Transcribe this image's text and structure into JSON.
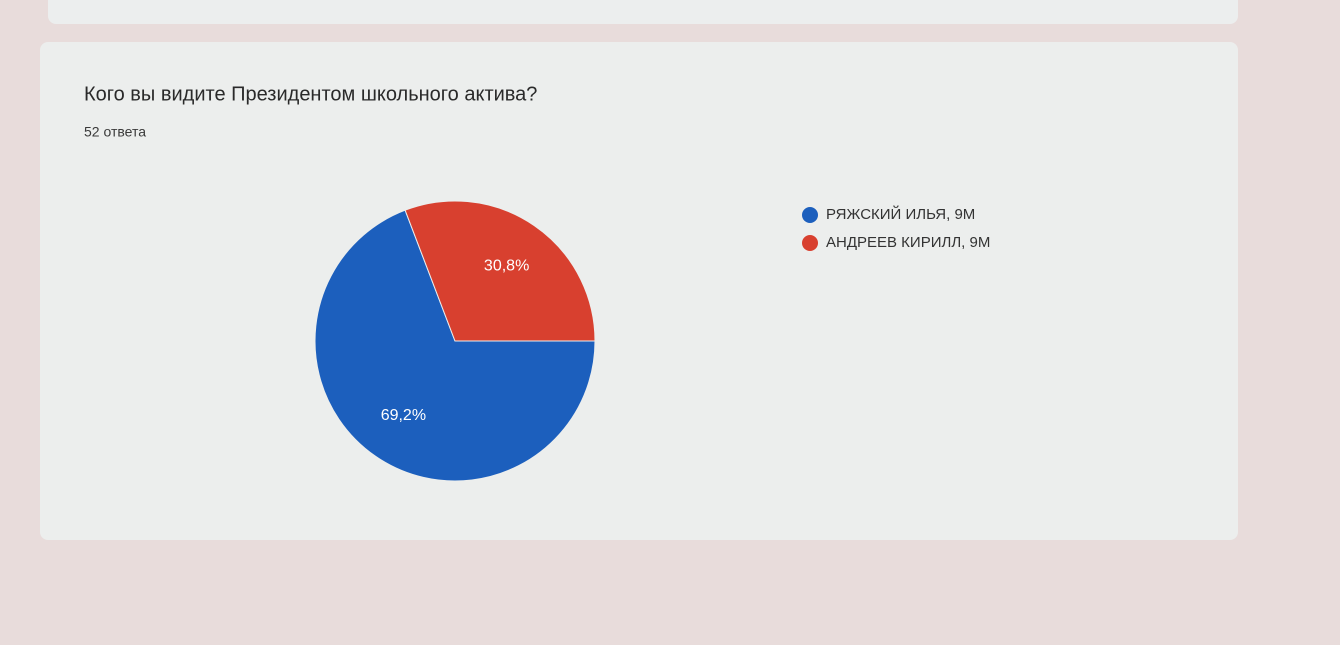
{
  "chart_data": {
    "type": "pie",
    "title": "Кого вы видите Президентом школьного актива?",
    "subtitle": "52 ответа",
    "categories": [
      "РЯЖСКИЙ ИЛЬЯ, 9М",
      "АНДРЕЕВ КИРИЛЛ, 9М"
    ],
    "values": [
      69.2,
      30.8
    ],
    "value_labels": [
      "69,2%",
      "30,8%"
    ],
    "colors": [
      "#1c5fbd",
      "#d8402f"
    ],
    "legend": "right"
  }
}
